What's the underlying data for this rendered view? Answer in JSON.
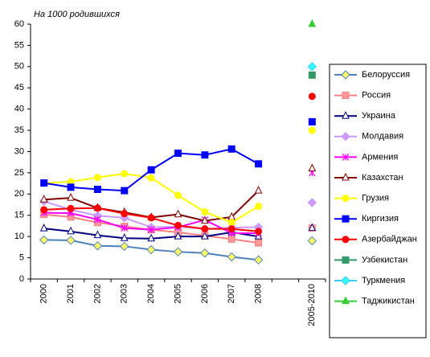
{
  "chart_data": {
    "type": "line",
    "annotation": "На 1000 родившихся",
    "categories": [
      "2000",
      "2001",
      "2002",
      "2003",
      "2004",
      "2005",
      "2006",
      "2007",
      "2008",
      null,
      "2005-2010"
    ],
    "ylim": [
      0,
      60
    ],
    "yticks": [
      0,
      5,
      10,
      15,
      20,
      25,
      30,
      35,
      40,
      45,
      50,
      55,
      60
    ],
    "grid": false,
    "legend": "right",
    "series": [
      {
        "name": "Белоруссия",
        "color": "#4f81bd",
        "marker": "diamond",
        "marker_color": "#ffff66",
        "values": [
          9.2,
          9.1,
          7.8,
          7.7,
          6.9,
          6.4,
          6.1,
          5.2,
          4.5,
          null,
          9
        ]
      },
      {
        "name": "Россия",
        "color": "#ff8080",
        "marker": "square",
        "marker_color": "#ff9999",
        "values": [
          15.2,
          14.6,
          13.3,
          12.4,
          11.6,
          11.0,
          10.2,
          9.4,
          8.5,
          null,
          12
        ]
      },
      {
        "name": "Украина",
        "color": "#000080",
        "marker": "triangle",
        "marker_color": "#ffffff",
        "values": [
          11.9,
          11.2,
          10.3,
          9.6,
          9.5,
          10.0,
          10.0,
          11.0,
          10.0,
          null,
          12
        ]
      },
      {
        "name": "Молдавия",
        "color": "#cc99ff",
        "marker": "diamond",
        "marker_color": "#cc99ff",
        "values": [
          18.3,
          16.3,
          14.9,
          14.4,
          12.2,
          12.3,
          11.8,
          12.1,
          12.2,
          null,
          18
        ]
      },
      {
        "name": "Армения",
        "color": "#ff00ff",
        "marker": "star",
        "marker_color": "#ff00ff",
        "values": [
          15.6,
          15.5,
          14.0,
          12.0,
          11.6,
          12.2,
          13.9,
          10.8,
          10.8,
          null,
          25
        ]
      },
      {
        "name": "Казахстан",
        "color": "#800000",
        "marker": "triangle",
        "marker_color": "#ffffff",
        "values": [
          18.7,
          19.1,
          16.7,
          15.7,
          14.5,
          15.2,
          13.7,
          14.6,
          20.8,
          null,
          26
        ]
      },
      {
        "name": "Грузия",
        "color": "#ffff00",
        "marker": "circle",
        "marker_color": "#ffff00",
        "values": [
          22.6,
          22.9,
          23.9,
          24.8,
          23.8,
          19.7,
          15.8,
          13.3,
          17.1,
          null,
          35
        ]
      },
      {
        "name": "Киргизия",
        "color": "#0000ff",
        "marker": "square",
        "marker_color": "#0000ff",
        "values": [
          22.6,
          21.6,
          21.1,
          20.8,
          25.7,
          29.6,
          29.2,
          30.6,
          27.1,
          null,
          37
        ]
      },
      {
        "name": "Азербайджан",
        "color": "#ff0000",
        "marker": "circle",
        "marker_color": "#ff0000",
        "values": [
          16.3,
          16.6,
          16.7,
          15.4,
          14.4,
          12.6,
          11.8,
          11.8,
          11.2,
          null,
          43
        ]
      },
      {
        "name": "Узбекистан",
        "color": "#339966",
        "marker": "square",
        "marker_color": "#339966",
        "values": [
          null,
          null,
          null,
          null,
          null,
          null,
          null,
          null,
          null,
          null,
          48
        ]
      },
      {
        "name": "Туркмения",
        "color": "#33ccff",
        "marker": "diamond",
        "marker_color": "#33ffff",
        "values": [
          null,
          null,
          null,
          null,
          null,
          null,
          null,
          null,
          null,
          null,
          50
        ]
      },
      {
        "name": "Таджикистан",
        "color": "#33cc33",
        "marker": "triangle",
        "marker_color": "#33cc33",
        "values": [
          null,
          null,
          null,
          null,
          null,
          null,
          null,
          null,
          null,
          null,
          60
        ]
      }
    ]
  }
}
